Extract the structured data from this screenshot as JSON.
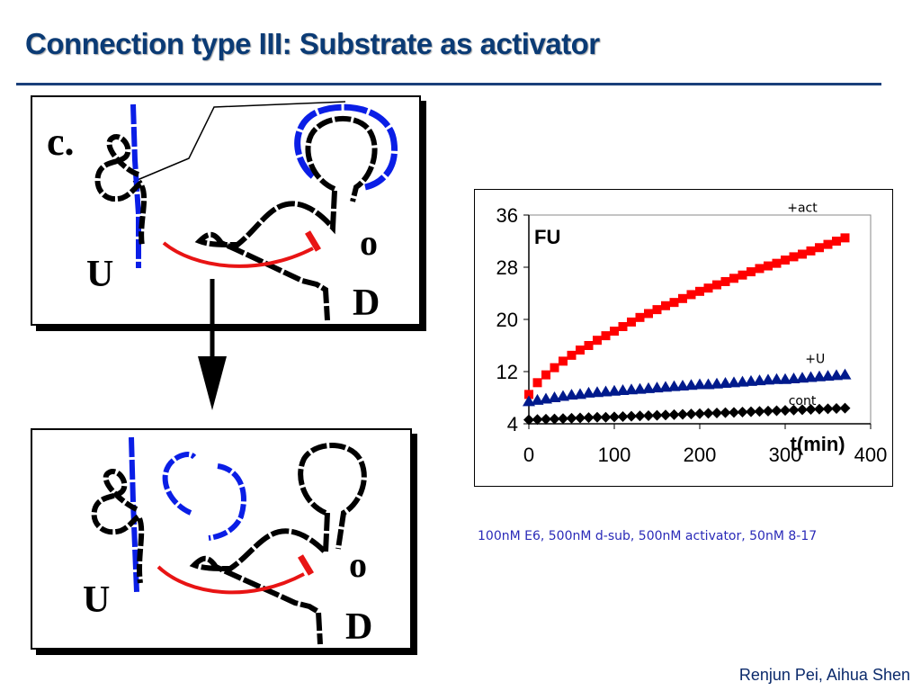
{
  "slide": {
    "title": "Connection type III: Substrate as activator",
    "authors": "Renjun Pei, Aihua Shen",
    "conditions": "100nM E6, 500nM d-sub, 500nM activator, 50nM 8-17"
  },
  "panel_top": {
    "letter": "c.",
    "label_u": "U",
    "label_o": "o",
    "label_d": "D"
  },
  "panel_bottom": {
    "label_u": "U",
    "label_o": "o",
    "label_d": "D"
  },
  "colors": {
    "title": "#0b3b75",
    "strand_blue": "#0a1ee6",
    "strand_red": "#e81414",
    "series_act": "#ff0000",
    "series_u": "#001a8c",
    "series_cont": "#000000"
  },
  "chart_data": {
    "type": "scatter",
    "ylabel_inside": "FU",
    "xlabel": "t(min)",
    "xlim": [
      0,
      400
    ],
    "ylim": [
      4,
      36
    ],
    "x_ticks": [
      0,
      100,
      200,
      300,
      400
    ],
    "y_ticks": [
      4,
      12,
      20,
      28,
      36
    ],
    "grid": false,
    "series": [
      {
        "name": "+act",
        "marker": "square",
        "x": [
          0,
          10,
          20,
          30,
          40,
          50,
          60,
          70,
          80,
          90,
          100,
          110,
          120,
          130,
          140,
          150,
          160,
          170,
          180,
          190,
          200,
          210,
          220,
          230,
          240,
          250,
          260,
          270,
          280,
          290,
          300,
          310,
          320,
          330,
          340,
          350,
          360,
          370
        ],
        "y": [
          8.5,
          10.3,
          11.5,
          12.6,
          13.6,
          14.5,
          15.3,
          16.0,
          16.8,
          17.5,
          18.2,
          18.9,
          19.6,
          20.3,
          20.9,
          21.5,
          22.1,
          22.6,
          23.2,
          23.8,
          24.3,
          24.8,
          25.3,
          25.8,
          26.3,
          26.8,
          27.3,
          27.8,
          28.2,
          28.6,
          29.1,
          29.6,
          30.0,
          30.5,
          31.0,
          31.5,
          32.0,
          32.5
        ]
      },
      {
        "name": "+U",
        "marker": "triangle",
        "x": [
          0,
          10,
          20,
          30,
          40,
          50,
          60,
          70,
          80,
          90,
          100,
          110,
          120,
          130,
          140,
          150,
          160,
          170,
          180,
          190,
          200,
          210,
          220,
          230,
          240,
          250,
          260,
          270,
          280,
          290,
          300,
          310,
          320,
          330,
          340,
          350,
          360,
          370
        ],
        "y": [
          7.4,
          7.6,
          7.8,
          8.0,
          8.2,
          8.4,
          8.5,
          8.7,
          8.8,
          8.9,
          9.0,
          9.1,
          9.2,
          9.3,
          9.4,
          9.5,
          9.6,
          9.7,
          9.8,
          9.9,
          10.0,
          10.0,
          10.1,
          10.2,
          10.3,
          10.4,
          10.5,
          10.6,
          10.7,
          10.8,
          10.8,
          10.9,
          11.0,
          11.1,
          11.2,
          11.3,
          11.4,
          11.5
        ]
      },
      {
        "name": "cont",
        "marker": "diamond",
        "x": [
          0,
          10,
          20,
          30,
          40,
          50,
          60,
          70,
          80,
          90,
          100,
          110,
          120,
          130,
          140,
          150,
          160,
          170,
          180,
          190,
          200,
          210,
          220,
          230,
          240,
          250,
          260,
          270,
          280,
          290,
          300,
          310,
          320,
          330,
          340,
          350,
          360,
          370
        ],
        "y": [
          4.6,
          4.65,
          4.7,
          4.75,
          4.8,
          4.85,
          4.9,
          4.95,
          5.0,
          5.0,
          5.05,
          5.1,
          5.15,
          5.2,
          5.25,
          5.3,
          5.35,
          5.4,
          5.45,
          5.5,
          5.55,
          5.6,
          5.65,
          5.7,
          5.75,
          5.8,
          5.85,
          5.9,
          5.95,
          6.0,
          6.05,
          6.1,
          6.15,
          6.2,
          6.25,
          6.3,
          6.35,
          6.4
        ]
      }
    ]
  }
}
